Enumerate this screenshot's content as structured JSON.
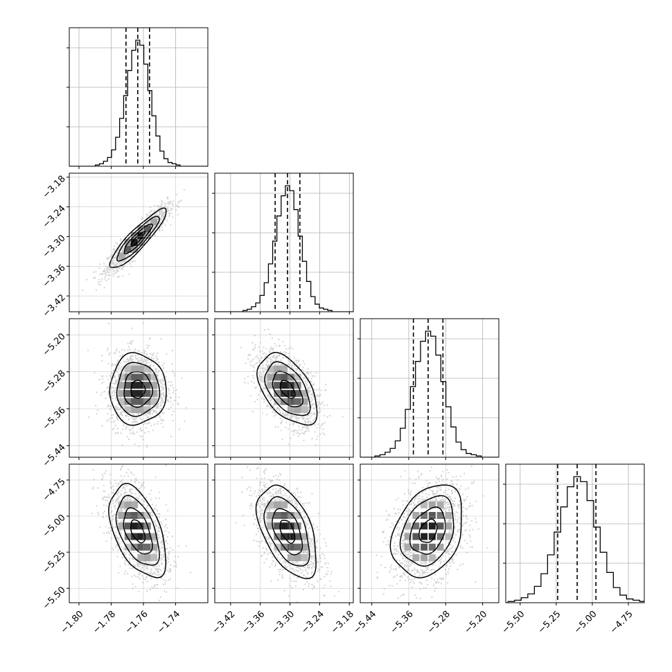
{
  "chart_data": {
    "type": "corner",
    "parameters": [
      {
        "median": -1.7635,
        "q16": -1.7708,
        "q84": -1.7562,
        "sigma": 0.0073,
        "range": [
          -1.806,
          -1.72
        ],
        "ticks": [
          -1.8,
          -1.78,
          -1.76,
          -1.74
        ],
        "tick_labels": [
          "−1.80",
          "−1.78",
          "−1.76",
          "−1.74"
        ],
        "hist_counts": [
          1,
          2,
          4,
          7,
          13,
          23,
          38,
          56,
          76,
          92,
          100,
          96,
          81,
          60,
          40,
          24,
          12,
          6,
          3,
          2,
          1
        ]
      },
      {
        "median": -3.305,
        "q16": -3.33,
        "q84": -3.28,
        "sigma": 0.025,
        "range": [
          -3.452,
          -3.172
        ],
        "ticks": [
          -3.42,
          -3.36,
          -3.3,
          -3.24,
          -3.18
        ],
        "tick_labels": [
          "−3.42",
          "−3.36",
          "−3.30",
          "−3.24",
          "−3.18"
        ],
        "hist_counts": [
          1,
          2,
          4,
          7,
          13,
          23,
          38,
          56,
          76,
          92,
          100,
          96,
          81,
          60,
          40,
          24,
          12,
          6,
          3,
          2,
          1
        ]
      },
      {
        "median": -5.318,
        "q16": -5.35,
        "q84": -5.286,
        "sigma": 0.032,
        "range": [
          -5.465,
          -5.165
        ],
        "ticks": [
          -5.44,
          -5.36,
          -5.28,
          -5.2
        ],
        "tick_labels": [
          "−5.44",
          "−5.36",
          "−5.28",
          "−5.20"
        ],
        "hist_counts": [
          1,
          2,
          4,
          7,
          13,
          23,
          38,
          56,
          76,
          92,
          100,
          96,
          81,
          60,
          40,
          24,
          12,
          6,
          3,
          2,
          1
        ]
      },
      {
        "median": -5.105,
        "q16": -5.24,
        "q84": -4.975,
        "sigma": 0.133,
        "range": [
          -5.6,
          -4.64
        ],
        "ticks": [
          -5.5,
          -5.25,
          -5.0,
          -4.75
        ],
        "tick_labels": [
          "−5.50",
          "−5.25",
          "−5.00",
          "−4.75"
        ],
        "hist_counts": [
          1,
          2,
          4,
          7,
          13,
          23,
          38,
          56,
          76,
          92,
          100,
          96,
          81,
          60,
          40,
          24,
          12,
          6,
          3,
          2,
          1
        ]
      }
    ],
    "correlations": {
      "0-1": 0.9,
      "0-2": 0.0,
      "1-2": -0.5,
      "0-3": -0.5,
      "1-3": -0.5,
      "2-3": 0.3
    },
    "quantiles": [
      0.16,
      0.5,
      0.84
    ],
    "contour_levels_sigma": [
      0.5,
      1.0,
      1.5,
      2.0
    ],
    "grid": true,
    "colors": {
      "hist": "#000000",
      "scatter": "#b0b0b0",
      "grid": "#b0b0b0",
      "contour": "#000000"
    }
  }
}
